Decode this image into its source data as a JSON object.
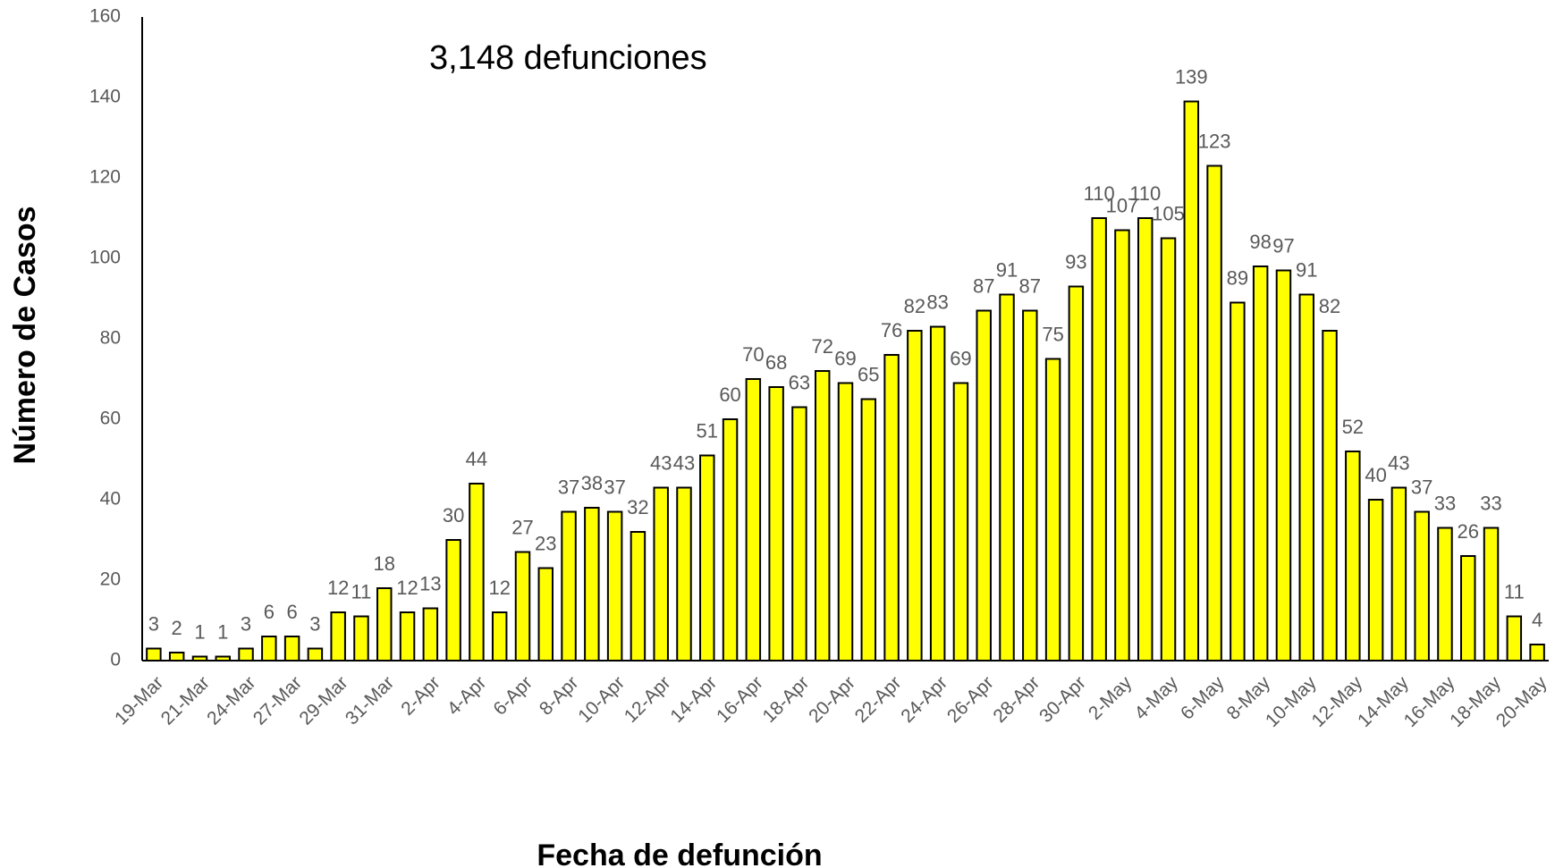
{
  "chart_data": {
    "type": "bar",
    "annotation": "3,148  defunciones",
    "x_label": "Fecha de defunción",
    "y_label": "Número de Casos",
    "categories": [
      "19-Mar",
      null,
      "21-Mar",
      null,
      "24-Mar",
      null,
      "27-Mar",
      null,
      "29-Mar",
      null,
      "31-Mar",
      null,
      "2-Apr",
      null,
      "4-Apr",
      null,
      "6-Apr",
      null,
      "8-Apr",
      null,
      "10-Apr",
      null,
      "12-Apr",
      null,
      "14-Apr",
      null,
      "16-Apr",
      null,
      "18-Apr",
      null,
      "20-Apr",
      null,
      "22-Apr",
      null,
      "24-Apr",
      null,
      "26-Apr",
      null,
      "28-Apr",
      null,
      "30-Apr",
      null,
      "2-May",
      null,
      "4-May",
      null,
      "6-May",
      null,
      "8-May",
      null,
      "10-May",
      null,
      "12-May",
      null,
      "14-May",
      null,
      "16-May",
      null,
      "18-May",
      null,
      "20-May"
    ],
    "values": [
      3,
      2,
      1,
      1,
      3,
      6,
      6,
      3,
      12,
      11,
      18,
      12,
      13,
      30,
      44,
      12,
      27,
      23,
      37,
      38,
      37,
      32,
      43,
      43,
      51,
      60,
      70,
      68,
      63,
      72,
      69,
      65,
      76,
      82,
      83,
      69,
      87,
      91,
      87,
      75,
      93,
      110,
      107,
      110,
      105,
      139,
      123,
      89,
      98,
      97,
      91,
      82,
      52,
      40,
      43,
      37,
      33,
      26,
      33,
      11,
      4
    ],
    "color": "#ffff00",
    "ylim": [
      0,
      160
    ],
    "yticks": [
      0,
      20,
      40,
      60,
      80,
      100,
      120,
      140,
      160
    ],
    "grid": false
  }
}
